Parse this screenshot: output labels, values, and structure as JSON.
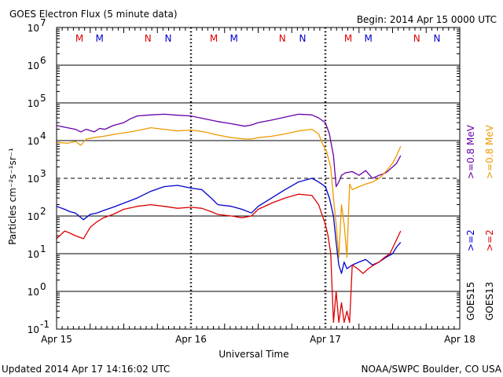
{
  "chart_data": {
    "type": "line",
    "title": "GOES Electron Flux (5 minute data)",
    "begin_text": "Begin: 2014 Apr 15 0000 UTC",
    "xlabel": "Universal Time",
    "ylabel": "Particles cm⁻²s⁻¹sr⁻¹",
    "updated_text": "Updated 2014 Apr 17 14:16:02 UTC",
    "credit_text": "NOAA/SWPC Boulder, CO USA",
    "y_scale": "log",
    "ylim": [
      0.1,
      10000000
    ],
    "xlim": [
      0,
      3
    ],
    "x_ticks": [
      {
        "x": 0,
        "label": "Apr 15"
      },
      {
        "x": 1,
        "label": "Apr 16"
      },
      {
        "x": 2,
        "label": "Apr 17"
      },
      {
        "x": 3,
        "label": "Apr 18"
      }
    ],
    "y_ticks": [
      {
        "exp": -1,
        "base": "10",
        "sup": "-1"
      },
      {
        "exp": 0,
        "base": "10",
        "sup": "0"
      },
      {
        "exp": 1,
        "base": "10",
        "sup": "1"
      },
      {
        "exp": 2,
        "base": "10",
        "sup": "2"
      },
      {
        "exp": 3,
        "base": "10",
        "sup": "3"
      },
      {
        "exp": 4,
        "base": "10",
        "sup": "4"
      },
      {
        "exp": 5,
        "base": "10",
        "sup": "5"
      },
      {
        "exp": 6,
        "base": "10",
        "sup": "6"
      },
      {
        "exp": 7,
        "base": "10",
        "sup": "7"
      }
    ],
    "threshold_line": 1000,
    "day_markers": [
      {
        "x": 0.17,
        "label": "M",
        "color": "#dd0000"
      },
      {
        "x": 0.32,
        "label": "M",
        "color": "#0000cc"
      },
      {
        "x": 0.68,
        "label": "N",
        "color": "#dd0000"
      },
      {
        "x": 0.83,
        "label": "N",
        "color": "#0000cc"
      },
      {
        "x": 1.17,
        "label": "M",
        "color": "#dd0000"
      },
      {
        "x": 1.32,
        "label": "M",
        "color": "#0000cc"
      },
      {
        "x": 1.68,
        "label": "N",
        "color": "#dd0000"
      },
      {
        "x": 1.83,
        "label": "N",
        "color": "#0000cc"
      },
      {
        "x": 2.17,
        "label": "M",
        "color": "#dd0000"
      },
      {
        "x": 2.32,
        "label": "M",
        "color": "#0000cc"
      },
      {
        "x": 2.68,
        "label": "N",
        "color": "#dd0000"
      },
      {
        "x": 2.83,
        "label": "N",
        "color": "#0000cc"
      }
    ],
    "right_labels": {
      "sat_goes15": "GOES15",
      "sat_goes13": "GOES13",
      "g15_high": ">=0.8 MeV",
      "g13_high": ">=0.8 MeV",
      "g15_low": ">=2",
      "g13_low": ">=2",
      "colors": {
        "g15_high": "#6600aa",
        "g13_high": "#ee9900",
        "g15_low": "#0000cc",
        "g13_low": "#dd0000"
      }
    },
    "series": [
      {
        "name": "GOES15 >=0.8 MeV",
        "color": "#6600aa",
        "x": [
          0,
          0.08,
          0.14,
          0.18,
          0.22,
          0.28,
          0.32,
          0.36,
          0.42,
          0.5,
          0.55,
          0.6,
          0.7,
          0.8,
          0.9,
          1.0,
          1.1,
          1.2,
          1.3,
          1.4,
          1.45,
          1.5,
          1.6,
          1.7,
          1.8,
          1.9,
          1.95,
          2.0,
          2.03,
          2.06,
          2.08,
          2.1,
          2.12,
          2.15,
          2.2,
          2.25,
          2.3,
          2.35,
          2.4,
          2.45,
          2.5,
          2.53,
          2.56
        ],
        "y": [
          25000,
          22000,
          20000,
          17000,
          20000,
          17000,
          21000,
          20000,
          25000,
          30000,
          38000,
          45000,
          48000,
          50000,
          47000,
          45000,
          38000,
          32000,
          28000,
          24000,
          26000,
          30000,
          35000,
          42000,
          50000,
          48000,
          40000,
          30000,
          15000,
          4000,
          600,
          800,
          1200,
          1400,
          1500,
          1200,
          1600,
          1000,
          1200,
          1400,
          2000,
          2500,
          4000
        ]
      },
      {
        "name": "GOES13 >=0.8 MeV",
        "color": "#ee9900",
        "x": [
          0,
          0.08,
          0.14,
          0.18,
          0.22,
          0.28,
          0.35,
          0.45,
          0.55,
          0.62,
          0.7,
          0.8,
          0.9,
          1.0,
          1.1,
          1.2,
          1.3,
          1.4,
          1.45,
          1.5,
          1.6,
          1.7,
          1.8,
          1.9,
          1.95,
          1.98,
          2.01,
          2.04,
          2.06,
          2.08,
          2.1,
          2.12,
          2.14,
          2.16,
          2.18,
          2.2,
          2.25,
          2.3,
          2.35,
          2.4,
          2.45,
          2.5,
          2.53,
          2.56
        ],
        "y": [
          9000,
          8500,
          9500,
          7500,
          11000,
          12000,
          13000,
          15000,
          17000,
          19000,
          22000,
          20000,
          18000,
          19000,
          17000,
          14000,
          12000,
          11000,
          11000,
          12000,
          13000,
          15000,
          18000,
          20000,
          15000,
          8000,
          5000,
          2000,
          300,
          60,
          8,
          200,
          60,
          8,
          700,
          500,
          600,
          700,
          800,
          1000,
          1500,
          2500,
          4000,
          7000
        ]
      },
      {
        "name": "GOES15 >=2 MeV",
        "color": "#0000cc",
        "x": [
          0,
          0.06,
          0.1,
          0.14,
          0.2,
          0.25,
          0.3,
          0.35,
          0.42,
          0.5,
          0.6,
          0.7,
          0.8,
          0.9,
          1.0,
          1.08,
          1.15,
          1.2,
          1.3,
          1.38,
          1.45,
          1.5,
          1.6,
          1.7,
          1.8,
          1.9,
          1.95,
          2.0,
          2.03,
          2.06,
          2.08,
          2.1,
          2.12,
          2.14,
          2.16,
          2.2,
          2.25,
          2.3,
          2.35,
          2.4,
          2.45,
          2.5,
          2.53,
          2.56
        ],
        "y": [
          180,
          150,
          130,
          120,
          80,
          110,
          120,
          140,
          170,
          220,
          300,
          450,
          600,
          650,
          550,
          500,
          300,
          200,
          180,
          150,
          120,
          180,
          300,
          500,
          800,
          1000,
          800,
          600,
          300,
          100,
          20,
          5,
          3,
          6,
          4,
          5,
          6,
          7,
          5,
          6,
          8,
          10,
          15,
          20
        ]
      },
      {
        "name": "GOES13 >=2 MeV",
        "color": "#dd0000",
        "x": [
          0,
          0.06,
          0.1,
          0.14,
          0.2,
          0.25,
          0.3,
          0.35,
          0.42,
          0.5,
          0.6,
          0.7,
          0.8,
          0.9,
          1.0,
          1.08,
          1.15,
          1.2,
          1.3,
          1.38,
          1.45,
          1.5,
          1.6,
          1.7,
          1.8,
          1.9,
          1.95,
          2.0,
          2.02,
          2.04,
          2.06,
          2.08,
          2.1,
          2.12,
          2.14,
          2.16,
          2.18,
          2.2,
          2.24,
          2.28,
          2.32,
          2.36,
          2.4,
          2.44,
          2.48,
          2.52,
          2.56
        ],
        "y": [
          25,
          40,
          35,
          30,
          25,
          50,
          70,
          90,
          110,
          150,
          180,
          200,
          180,
          160,
          170,
          160,
          130,
          110,
          100,
          90,
          100,
          150,
          220,
          300,
          380,
          350,
          200,
          60,
          30,
          10,
          0.15,
          1,
          0.15,
          0.5,
          0.15,
          0.3,
          0.15,
          5,
          4,
          3,
          4,
          5,
          6,
          8,
          10,
          20,
          40
        ]
      }
    ]
  }
}
